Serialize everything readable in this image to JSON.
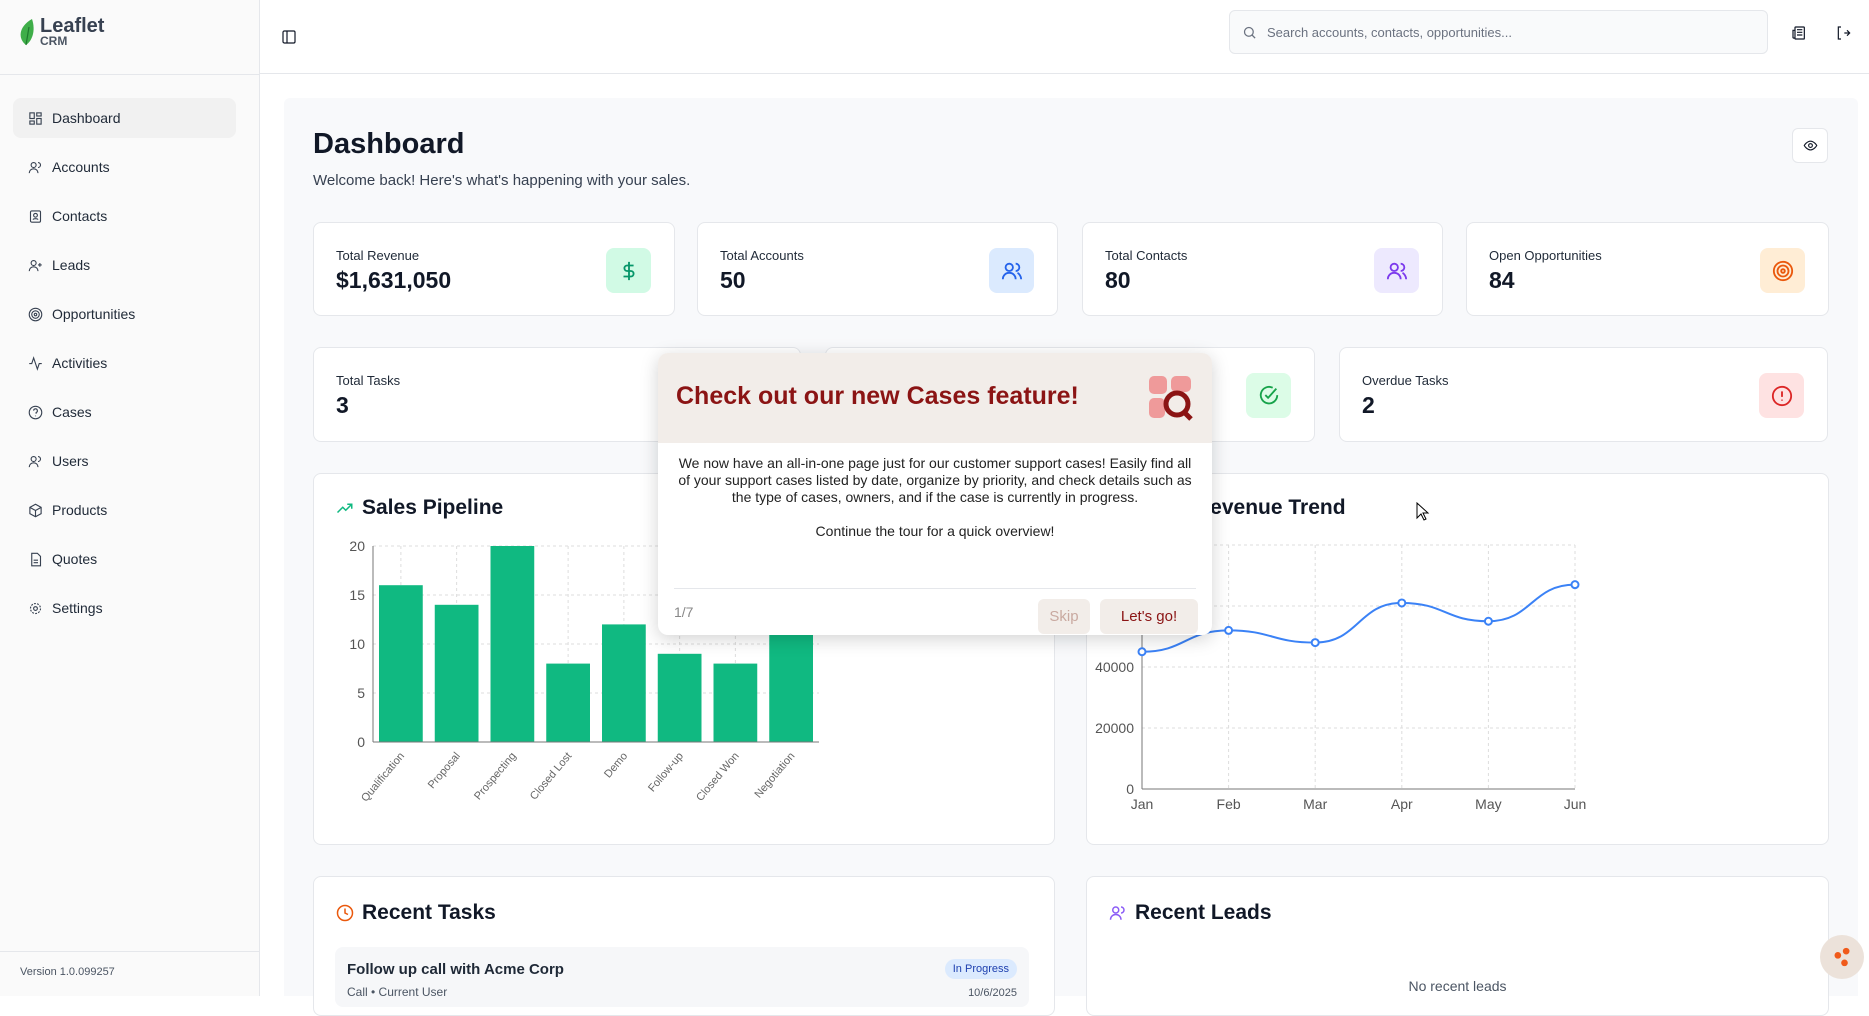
{
  "app": {
    "name": "Leaflet",
    "sub": "CRM",
    "version": "Version 1.0.099257"
  },
  "sidebar": {
    "items": [
      {
        "label": "Dashboard",
        "icon": "layout-grid-icon",
        "active": true
      },
      {
        "label": "Accounts",
        "icon": "users-icon"
      },
      {
        "label": "Contacts",
        "icon": "contact-icon"
      },
      {
        "label": "Leads",
        "icon": "user-plus-icon"
      },
      {
        "label": "Opportunities",
        "icon": "target-icon"
      },
      {
        "label": "Activities",
        "icon": "activity-icon"
      },
      {
        "label": "Cases",
        "icon": "help-circle-icon"
      },
      {
        "label": "Users",
        "icon": "users-icon"
      },
      {
        "label": "Products",
        "icon": "package-icon"
      },
      {
        "label": "Quotes",
        "icon": "file-text-icon"
      },
      {
        "label": "Settings",
        "icon": "gear-icon"
      }
    ]
  },
  "header": {
    "search_placeholder": "Search accounts, contacts, opportunities..."
  },
  "page": {
    "title": "Dashboard",
    "subtitle": "Welcome back! Here's what's happening with your sales."
  },
  "stats": [
    {
      "label": "Total Revenue",
      "value": "$1,631,050",
      "color": "#059669",
      "bg": "#d1fae5"
    },
    {
      "label": "Total Accounts",
      "value": "50",
      "color": "#2563eb",
      "bg": "#dbeafe"
    },
    {
      "label": "Total Contacts",
      "value": "80",
      "color": "#7c3aed",
      "bg": "#ede9fe"
    },
    {
      "label": "Open Opportunities",
      "value": "84",
      "color": "#ea580c",
      "bg": "#ffedd5"
    },
    {
      "label": "Total Tasks",
      "value": "3"
    },
    {
      "label": "Overdue Tasks",
      "value": "2",
      "color": "#dc2626",
      "bg": "#fee2e2"
    }
  ],
  "chart_data": [
    {
      "type": "bar",
      "title": "Sales Pipeline",
      "categories": [
        "Qualification",
        "Proposal",
        "Prospecting",
        "Closed Lost",
        "Demo",
        "Follow-up",
        "Closed Won",
        "Negotiation"
      ],
      "values": [
        16,
        14,
        20,
        8,
        12,
        9,
        8,
        12
      ],
      "ylim": [
        0,
        20
      ],
      "yticks": [
        0,
        5,
        10,
        15,
        20
      ],
      "color": "#10b981"
    },
    {
      "type": "line",
      "title": "Revenue Trend",
      "title_visible": "e Trend",
      "categories": [
        "Jan",
        "Feb",
        "Mar",
        "Apr",
        "May",
        "Jun"
      ],
      "values": [
        45000,
        52000,
        48000,
        61000,
        55000,
        67000
      ],
      "ylim": [
        0,
        80000
      ],
      "yticks": [
        0,
        20000,
        40000
      ],
      "color": "#3b82f6"
    }
  ],
  "recent_tasks": {
    "title": "Recent Tasks",
    "items": [
      {
        "title": "Follow up call with Acme Corp",
        "meta": "Call • Current User",
        "status": "In Progress",
        "date": "10/6/2025"
      }
    ]
  },
  "recent_leads": {
    "title": "Recent Leads",
    "empty": "No recent leads"
  },
  "tour": {
    "title": "Check out our new Cases feature!",
    "body": "We now have an all-in-one page just for our customer support cases! Easily find all of your support cases listed by date, organize by priority, and check details such as the type of cases, owners, and if the case is currently in progress.",
    "cta": "Continue the tour for a quick overview!",
    "step": "1/7",
    "skip": "Skip",
    "next": "Let's go!"
  }
}
